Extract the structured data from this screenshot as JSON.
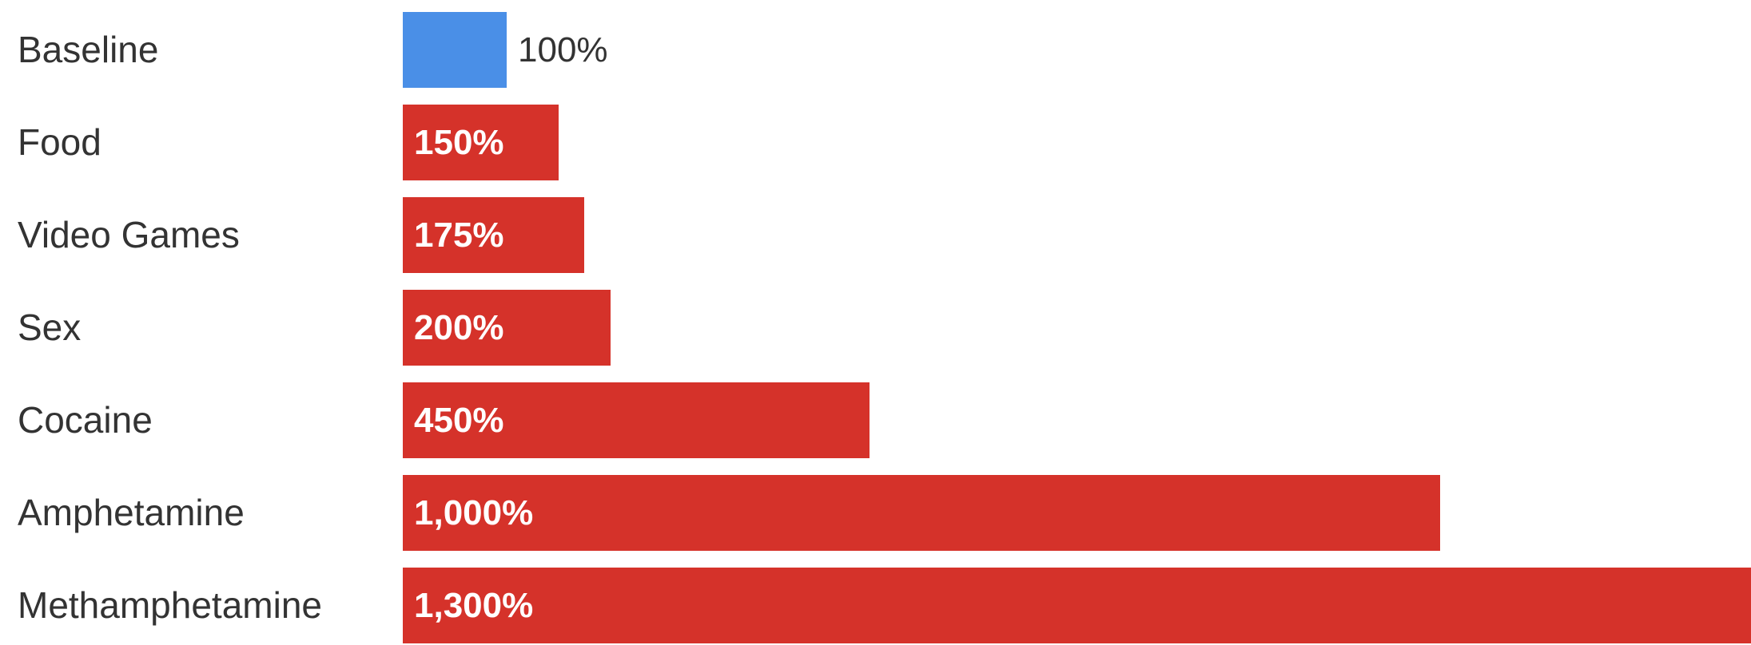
{
  "chart_data": {
    "type": "bar",
    "orientation": "horizontal",
    "categories": [
      "Baseline",
      "Food",
      "Video Games",
      "Sex",
      "Cocaine",
      "Amphetamine",
      "Methamphetamine"
    ],
    "values": [
      100,
      150,
      175,
      200,
      450,
      1000,
      1300
    ],
    "value_labels": [
      "100%",
      "150%",
      "175%",
      "200%",
      "450%",
      "1,000%",
      "1,300%"
    ],
    "colors": [
      "#4A8FE7",
      "#D5322A",
      "#D5322A",
      "#D5322A",
      "#D5322A",
      "#D5322A",
      "#D5322A"
    ],
    "xlim": [
      0,
      1300
    ],
    "grid": false,
    "legend": "none"
  }
}
